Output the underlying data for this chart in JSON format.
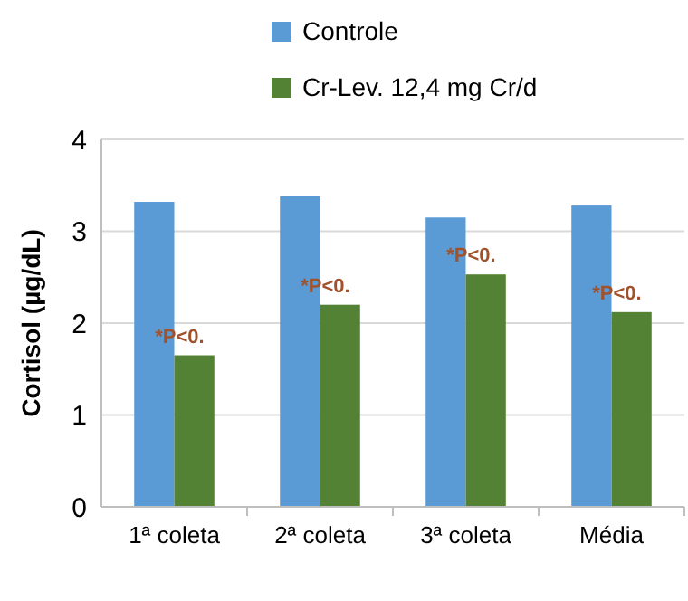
{
  "chart_data": {
    "type": "bar",
    "ylabel": "Cortisol (µg/dL)",
    "categories": [
      "1ª coleta",
      "2ª coleta",
      "3ª coleta",
      "Média"
    ],
    "series": [
      {
        "name": "Controle",
        "color": "#5b9bd5",
        "values": [
          3.32,
          3.38,
          3.15,
          3.28
        ]
      },
      {
        "name": "Cr-Lev. 12,4 mg Cr/d",
        "color": "#548235",
        "values": [
          1.65,
          2.2,
          2.53,
          2.12
        ]
      }
    ],
    "ylim": [
      0,
      4
    ],
    "yticks": [
      0,
      1,
      2,
      3,
      4
    ],
    "grid": "y",
    "legend": "top",
    "annotations": [
      {
        "text": "*P<0.",
        "x": "1ª coleta",
        "y": 1.65
      },
      {
        "text": "*P<0.",
        "x": "2ª coleta",
        "y": 2.2
      },
      {
        "text": "*P<0.",
        "x": "3ª coleta",
        "y": 2.53
      },
      {
        "text": "*P<0.",
        "x": "Média",
        "y": 2.12
      }
    ]
  }
}
